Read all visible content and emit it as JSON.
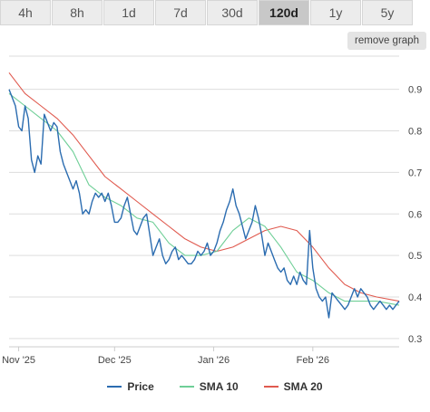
{
  "timeframes": [
    "4h",
    "8h",
    "1d",
    "7d",
    "30d",
    "120d",
    "1y",
    "5y"
  ],
  "active_timeframe": "120d",
  "remove_graph_label": "remove graph",
  "colors": {
    "price": "#2b6cb0",
    "sma10": "#6fcf97",
    "sma20": "#e05a4f",
    "grid": "#dddddd"
  },
  "chart_data": {
    "type": "line",
    "ylim": [
      0.28,
      0.98
    ],
    "yticks": [
      0.9,
      0.8,
      0.7,
      0.6,
      0.5,
      0.4,
      0.3
    ],
    "ytick_labels": [
      "0.9",
      "0.8",
      "0.7",
      "0.6",
      "0.5",
      "0.4",
      "0.3"
    ],
    "x_range": [
      "2025-10-29",
      "2026-02-28"
    ],
    "xticks": [
      {
        "date": "2025-11-01",
        "label": "Nov '25"
      },
      {
        "date": "2025-12-01",
        "label": "Dec '25"
      },
      {
        "date": "2026-01-01",
        "label": "Jan '26"
      },
      {
        "date": "2026-02-01",
        "label": "Feb '26"
      }
    ],
    "series": [
      {
        "name": "Price",
        "points": [
          [
            "2025-10-29",
            0.9
          ],
          [
            "2025-10-30",
            0.88
          ],
          [
            "2025-10-31",
            0.86
          ],
          [
            "2025-11-01",
            0.81
          ],
          [
            "2025-11-02",
            0.8
          ],
          [
            "2025-11-03",
            0.86
          ],
          [
            "2025-11-04",
            0.83
          ],
          [
            "2025-11-05",
            0.73
          ],
          [
            "2025-11-06",
            0.7
          ],
          [
            "2025-11-07",
            0.74
          ],
          [
            "2025-11-08",
            0.72
          ],
          [
            "2025-11-09",
            0.84
          ],
          [
            "2025-11-10",
            0.82
          ],
          [
            "2025-11-11",
            0.8
          ],
          [
            "2025-11-12",
            0.82
          ],
          [
            "2025-11-13",
            0.81
          ],
          [
            "2025-11-14",
            0.75
          ],
          [
            "2025-11-15",
            0.72
          ],
          [
            "2025-11-16",
            0.7
          ],
          [
            "2025-11-17",
            0.68
          ],
          [
            "2025-11-18",
            0.66
          ],
          [
            "2025-11-19",
            0.68
          ],
          [
            "2025-11-20",
            0.65
          ],
          [
            "2025-11-21",
            0.6
          ],
          [
            "2025-11-22",
            0.61
          ],
          [
            "2025-11-23",
            0.6
          ],
          [
            "2025-11-24",
            0.63
          ],
          [
            "2025-11-25",
            0.65
          ],
          [
            "2025-11-26",
            0.64
          ],
          [
            "2025-11-27",
            0.65
          ],
          [
            "2025-11-28",
            0.63
          ],
          [
            "2025-11-29",
            0.65
          ],
          [
            "2025-11-30",
            0.62
          ],
          [
            "2025-12-01",
            0.58
          ],
          [
            "2025-12-02",
            0.58
          ],
          [
            "2025-12-03",
            0.59
          ],
          [
            "2025-12-04",
            0.62
          ],
          [
            "2025-12-05",
            0.64
          ],
          [
            "2025-12-06",
            0.6
          ],
          [
            "2025-12-07",
            0.56
          ],
          [
            "2025-12-08",
            0.55
          ],
          [
            "2025-12-09",
            0.57
          ],
          [
            "2025-12-10",
            0.59
          ],
          [
            "2025-12-11",
            0.6
          ],
          [
            "2025-12-12",
            0.55
          ],
          [
            "2025-12-13",
            0.5
          ],
          [
            "2025-12-14",
            0.52
          ],
          [
            "2025-12-15",
            0.54
          ],
          [
            "2025-12-16",
            0.5
          ],
          [
            "2025-12-17",
            0.48
          ],
          [
            "2025-12-18",
            0.49
          ],
          [
            "2025-12-19",
            0.51
          ],
          [
            "2025-12-20",
            0.52
          ],
          [
            "2025-12-21",
            0.49
          ],
          [
            "2025-12-22",
            0.5
          ],
          [
            "2025-12-23",
            0.49
          ],
          [
            "2025-12-24",
            0.48
          ],
          [
            "2025-12-25",
            0.48
          ],
          [
            "2025-12-26",
            0.49
          ],
          [
            "2025-12-27",
            0.51
          ],
          [
            "2025-12-28",
            0.5
          ],
          [
            "2025-12-29",
            0.51
          ],
          [
            "2025-12-30",
            0.53
          ],
          [
            "2025-12-31",
            0.5
          ],
          [
            "2026-01-01",
            0.51
          ],
          [
            "2026-01-02",
            0.53
          ],
          [
            "2026-01-03",
            0.56
          ],
          [
            "2026-01-04",
            0.58
          ],
          [
            "2026-01-05",
            0.61
          ],
          [
            "2026-01-06",
            0.63
          ],
          [
            "2026-01-07",
            0.66
          ],
          [
            "2026-01-08",
            0.62
          ],
          [
            "2026-01-09",
            0.6
          ],
          [
            "2026-01-10",
            0.57
          ],
          [
            "2026-01-11",
            0.54
          ],
          [
            "2026-01-12",
            0.56
          ],
          [
            "2026-01-13",
            0.58
          ],
          [
            "2026-01-14",
            0.62
          ],
          [
            "2026-01-15",
            0.59
          ],
          [
            "2026-01-16",
            0.55
          ],
          [
            "2026-01-17",
            0.5
          ],
          [
            "2026-01-18",
            0.53
          ],
          [
            "2026-01-19",
            0.51
          ],
          [
            "2026-01-20",
            0.49
          ],
          [
            "2026-01-21",
            0.47
          ],
          [
            "2026-01-22",
            0.46
          ],
          [
            "2026-01-23",
            0.47
          ],
          [
            "2026-01-24",
            0.44
          ],
          [
            "2026-01-25",
            0.43
          ],
          [
            "2026-01-26",
            0.45
          ],
          [
            "2026-01-27",
            0.43
          ],
          [
            "2026-01-28",
            0.46
          ],
          [
            "2026-01-29",
            0.44
          ],
          [
            "2026-01-30",
            0.43
          ],
          [
            "2026-01-31",
            0.56
          ],
          [
            "2026-02-01",
            0.47
          ],
          [
            "2026-02-02",
            0.42
          ],
          [
            "2026-02-03",
            0.4
          ],
          [
            "2026-02-04",
            0.39
          ],
          [
            "2026-02-05",
            0.4
          ],
          [
            "2026-02-06",
            0.35
          ],
          [
            "2026-02-07",
            0.41
          ],
          [
            "2026-02-08",
            0.4
          ],
          [
            "2026-02-09",
            0.39
          ],
          [
            "2026-02-10",
            0.38
          ],
          [
            "2026-02-11",
            0.37
          ],
          [
            "2026-02-12",
            0.38
          ],
          [
            "2026-02-13",
            0.4
          ],
          [
            "2026-02-14",
            0.42
          ],
          [
            "2026-02-15",
            0.4
          ],
          [
            "2026-02-16",
            0.42
          ],
          [
            "2026-02-17",
            0.41
          ],
          [
            "2026-02-18",
            0.4
          ],
          [
            "2026-02-19",
            0.38
          ],
          [
            "2026-02-20",
            0.37
          ],
          [
            "2026-02-21",
            0.38
          ],
          [
            "2026-02-22",
            0.39
          ],
          [
            "2026-02-23",
            0.38
          ],
          [
            "2026-02-24",
            0.37
          ],
          [
            "2026-02-25",
            0.38
          ],
          [
            "2026-02-26",
            0.37
          ],
          [
            "2026-02-27",
            0.38
          ],
          [
            "2026-02-28",
            0.39
          ]
        ]
      },
      {
        "name": "SMA 10",
        "points": [
          [
            "2025-10-29",
            0.89
          ],
          [
            "2025-11-03",
            0.86
          ],
          [
            "2025-11-08",
            0.83
          ],
          [
            "2025-11-13",
            0.8
          ],
          [
            "2025-11-18",
            0.75
          ],
          [
            "2025-11-23",
            0.67
          ],
          [
            "2025-11-28",
            0.64
          ],
          [
            "2025-12-03",
            0.62
          ],
          [
            "2025-12-08",
            0.59
          ],
          [
            "2025-12-13",
            0.58
          ],
          [
            "2025-12-18",
            0.53
          ],
          [
            "2025-12-23",
            0.5
          ],
          [
            "2025-12-28",
            0.5
          ],
          [
            "2026-01-02",
            0.51
          ],
          [
            "2026-01-07",
            0.56
          ],
          [
            "2026-01-12",
            0.59
          ],
          [
            "2026-01-17",
            0.57
          ],
          [
            "2026-01-22",
            0.52
          ],
          [
            "2026-01-27",
            0.46
          ],
          [
            "2026-02-01",
            0.44
          ],
          [
            "2026-02-06",
            0.41
          ],
          [
            "2026-02-11",
            0.39
          ],
          [
            "2026-02-16",
            0.39
          ],
          [
            "2026-02-21",
            0.39
          ],
          [
            "2026-02-28",
            0.38
          ]
        ]
      },
      {
        "name": "SMA 20",
        "points": [
          [
            "2025-10-29",
            0.94
          ],
          [
            "2025-11-03",
            0.89
          ],
          [
            "2025-11-08",
            0.86
          ],
          [
            "2025-11-13",
            0.83
          ],
          [
            "2025-11-18",
            0.79
          ],
          [
            "2025-11-23",
            0.74
          ],
          [
            "2025-11-28",
            0.69
          ],
          [
            "2025-12-03",
            0.66
          ],
          [
            "2025-12-08",
            0.63
          ],
          [
            "2025-12-13",
            0.6
          ],
          [
            "2025-12-18",
            0.57
          ],
          [
            "2025-12-23",
            0.54
          ],
          [
            "2025-12-28",
            0.52
          ],
          [
            "2026-01-02",
            0.51
          ],
          [
            "2026-01-07",
            0.52
          ],
          [
            "2026-01-12",
            0.54
          ],
          [
            "2026-01-17",
            0.56
          ],
          [
            "2026-01-22",
            0.57
          ],
          [
            "2026-01-27",
            0.56
          ],
          [
            "2026-02-01",
            0.52
          ],
          [
            "2026-02-06",
            0.47
          ],
          [
            "2026-02-11",
            0.43
          ],
          [
            "2026-02-16",
            0.41
          ],
          [
            "2026-02-21",
            0.4
          ],
          [
            "2026-02-28",
            0.39
          ]
        ]
      }
    ]
  }
}
